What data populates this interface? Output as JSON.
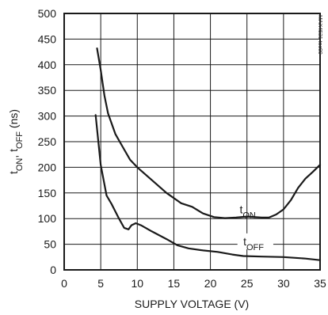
{
  "chart_data": {
    "type": "line",
    "xlabel": "SUPPLY VOLTAGE (V)",
    "ylabel": {
      "parts": [
        {
          "text": "t",
          "sub": false
        },
        {
          "text": "ON",
          "sub": true
        },
        {
          "text": ", t",
          "sub": false
        },
        {
          "text": "OFF",
          "sub": true
        },
        {
          "text": " (ns)",
          "sub": false
        }
      ]
    },
    "xlim": [
      0,
      35
    ],
    "ylim": [
      0,
      500
    ],
    "x_ticks": [
      "0",
      "5",
      "10",
      "15",
      "20",
      "25",
      "30",
      "35"
    ],
    "y_ticks": [
      "0",
      "50",
      "100",
      "150",
      "200",
      "250",
      "300",
      "350",
      "400",
      "450",
      "500"
    ],
    "grid": true,
    "side_code": "MAX4521 toc09",
    "series": [
      {
        "name": "tON",
        "label_main": "t",
        "label_sub": "ON",
        "points": [
          [
            4.5,
            432
          ],
          [
            5.0,
            390
          ],
          [
            5.5,
            340
          ],
          [
            6.0,
            305
          ],
          [
            7.0,
            265
          ],
          [
            8.0,
            240
          ],
          [
            9.0,
            215
          ],
          [
            10.0,
            200
          ],
          [
            12.0,
            175
          ],
          [
            14.0,
            150
          ],
          [
            16.0,
            130
          ],
          [
            17.5,
            123
          ],
          [
            19.0,
            110
          ],
          [
            20.5,
            103
          ],
          [
            22.0,
            101
          ],
          [
            23.5,
            102
          ],
          [
            25.0,
            104
          ],
          [
            27.0,
            102
          ],
          [
            28.0,
            102
          ],
          [
            29.0,
            108
          ],
          [
            30.0,
            118
          ],
          [
            31.0,
            136
          ],
          [
            32.0,
            160
          ],
          [
            33.0,
            178
          ],
          [
            34.0,
            191
          ],
          [
            35.0,
            205
          ]
        ]
      },
      {
        "name": "tOFF",
        "label_main": "t",
        "label_sub": "OFF",
        "points": [
          [
            4.3,
            302
          ],
          [
            5.0,
            205
          ],
          [
            5.8,
            145
          ],
          [
            6.5,
            128
          ],
          [
            7.5,
            100
          ],
          [
            8.2,
            82
          ],
          [
            8.8,
            79
          ],
          [
            9.2,
            87
          ],
          [
            9.8,
            91
          ],
          [
            10.5,
            87
          ],
          [
            12.0,
            75
          ],
          [
            14.0,
            60
          ],
          [
            15.5,
            48
          ],
          [
            17.0,
            42
          ],
          [
            19.0,
            38
          ],
          [
            21.0,
            35
          ],
          [
            23.0,
            30
          ],
          [
            24.5,
            27
          ],
          [
            27.0,
            26
          ],
          [
            30.0,
            25
          ],
          [
            33.0,
            22
          ],
          [
            35.0,
            19
          ]
        ]
      }
    ]
  }
}
